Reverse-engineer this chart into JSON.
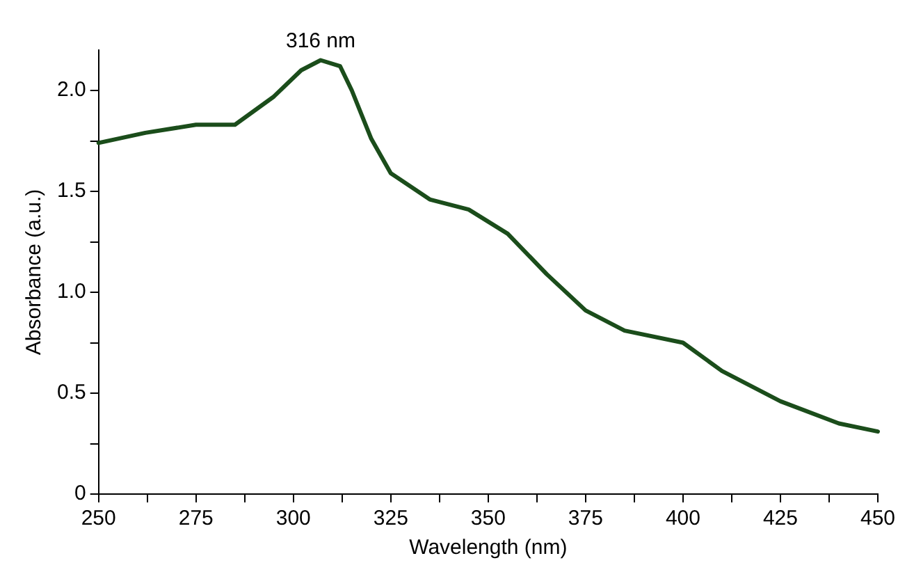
{
  "chart_data": {
    "type": "line",
    "xlabel": "Wavelength (nm)",
    "ylabel": "Absorbance (a.u.)",
    "x": [
      250,
      262,
      275,
      285,
      295,
      302,
      307,
      312,
      315,
      320,
      325,
      335,
      345,
      355,
      365,
      375,
      385,
      400,
      410,
      425,
      440,
      450
    ],
    "series": [
      {
        "color": "#1b4d1b",
        "values": [
          1.74,
          1.79,
          1.83,
          1.83,
          1.97,
          2.1,
          2.15,
          2.12,
          2.0,
          1.76,
          1.59,
          1.46,
          1.41,
          1.29,
          1.09,
          0.91,
          0.81,
          0.75,
          0.61,
          0.46,
          0.35,
          0.31
        ]
      }
    ],
    "annotations": [
      {
        "text": "316 nm",
        "x": 307,
        "y": 2.15
      }
    ],
    "xlim": [
      250,
      450
    ],
    "xticks": [
      250,
      {
        "value": 262.5,
        "label": null
      },
      275,
      {
        "value": 287.5,
        "label": null
      },
      300,
      {
        "value": 312.5,
        "label": null
      },
      325,
      {
        "value": 337.5,
        "label": null
      },
      350,
      {
        "value": 362.5,
        "label": null
      },
      375,
      {
        "value": 387.5,
        "label": null
      },
      400,
      {
        "value": 412.5,
        "label": null
      },
      425,
      {
        "value": 437.5,
        "label": null
      },
      450
    ],
    "ylim": [
      0,
      2.2
    ],
    "yticks": [
      0,
      {
        "value": 0.25,
        "label": null
      },
      {
        "value": 0.5,
        "label": "0.5"
      },
      {
        "value": 0.75,
        "label": null
      },
      {
        "value": 1,
        "label": "1.0"
      },
      {
        "value": 1.25,
        "label": null
      },
      {
        "value": 1.5,
        "label": "1.5"
      },
      {
        "value": 1.75,
        "label": null
      },
      {
        "value": 2,
        "label": "2.0"
      }
    ],
    "grid": false,
    "legend": false,
    "marker": "none",
    "line_style": "solid"
  }
}
